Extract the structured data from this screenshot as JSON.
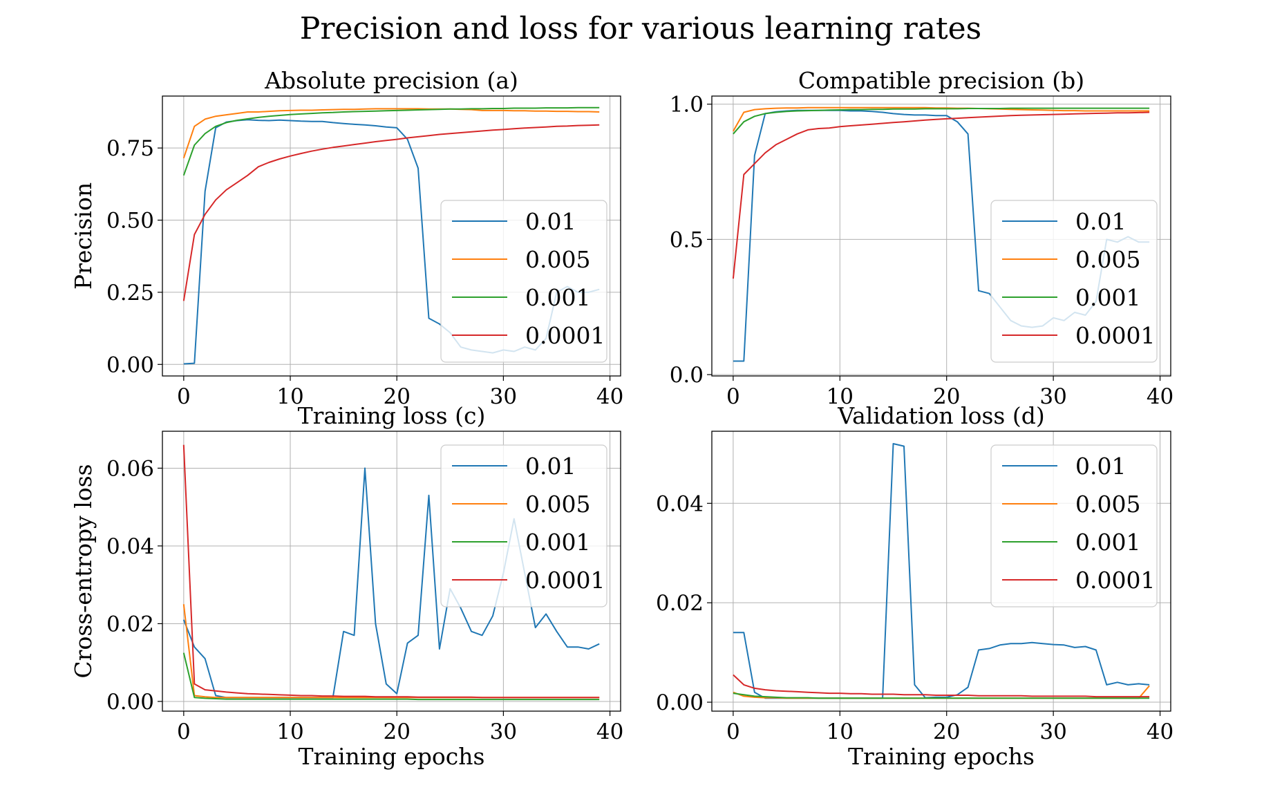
{
  "figure": {
    "title": "Precision and loss for various learning rates",
    "series_colors": {
      "0.01": "#1f77b4",
      "0.005": "#ff7f0e",
      "0.001": "#2ca02c",
      "0.0001": "#d62728"
    }
  },
  "chart_data": [
    {
      "type": "line",
      "title": "Absolute precision (a)",
      "xlabel": "",
      "ylabel": "Precision",
      "xlim": [
        -2,
        41
      ],
      "ylim": [
        -0.04,
        0.93
      ],
      "xticks": [
        0,
        10,
        20,
        30,
        40
      ],
      "xtick_labels": [
        "0",
        "10",
        "20",
        "30",
        "40"
      ],
      "yticks": [
        0,
        0.25,
        0.5,
        0.75
      ],
      "ytick_labels": [
        "0.00",
        "0.25",
        "0.50",
        "0.75"
      ],
      "grid": true,
      "legend": "center-right",
      "x": [
        0,
        1,
        2,
        3,
        4,
        5,
        6,
        7,
        8,
        9,
        10,
        11,
        12,
        13,
        14,
        15,
        16,
        17,
        18,
        19,
        20,
        21,
        22,
        23,
        24,
        25,
        26,
        27,
        28,
        29,
        30,
        31,
        32,
        33,
        34,
        35,
        36,
        37,
        38,
        39
      ],
      "series": [
        {
          "name": "0.01",
          "color": "#1f77b4",
          "values": [
            0.002,
            0.004,
            0.6,
            0.82,
            0.84,
            0.845,
            0.848,
            0.846,
            0.845,
            0.847,
            0.845,
            0.843,
            0.842,
            0.842,
            0.838,
            0.835,
            0.832,
            0.83,
            0.827,
            0.823,
            0.82,
            0.78,
            0.68,
            0.16,
            0.14,
            0.11,
            0.06,
            0.05,
            0.045,
            0.04,
            0.05,
            0.045,
            0.06,
            0.05,
            0.09,
            0.25,
            0.27,
            0.25,
            0.25,
            0.26
          ]
        },
        {
          "name": "0.005",
          "color": "#ff7f0e",
          "values": [
            0.715,
            0.825,
            0.85,
            0.86,
            0.865,
            0.87,
            0.875,
            0.875,
            0.877,
            0.879,
            0.88,
            0.881,
            0.881,
            0.882,
            0.883,
            0.884,
            0.884,
            0.885,
            0.886,
            0.886,
            0.886,
            0.886,
            0.886,
            0.885,
            0.885,
            0.885,
            0.884,
            0.883,
            0.88,
            0.88,
            0.88,
            0.879,
            0.879,
            0.878,
            0.878,
            0.877,
            0.877,
            0.876,
            0.876,
            0.875
          ]
        },
        {
          "name": "0.001",
          "color": "#2ca02c",
          "values": [
            0.655,
            0.76,
            0.8,
            0.825,
            0.838,
            0.846,
            0.851,
            0.856,
            0.86,
            0.863,
            0.866,
            0.868,
            0.87,
            0.872,
            0.873,
            0.875,
            0.876,
            0.877,
            0.878,
            0.879,
            0.88,
            0.881,
            0.882,
            0.883,
            0.884,
            0.885,
            0.885,
            0.886,
            0.886,
            0.887,
            0.887,
            0.888,
            0.888,
            0.888,
            0.889,
            0.889,
            0.889,
            0.89,
            0.89,
            0.89
          ]
        },
        {
          "name": "0.0001",
          "color": "#d62728",
          "values": [
            0.22,
            0.45,
            0.52,
            0.57,
            0.605,
            0.63,
            0.655,
            0.685,
            0.7,
            0.712,
            0.722,
            0.731,
            0.739,
            0.746,
            0.752,
            0.757,
            0.762,
            0.767,
            0.772,
            0.776,
            0.78,
            0.785,
            0.789,
            0.793,
            0.797,
            0.8,
            0.803,
            0.806,
            0.809,
            0.812,
            0.814,
            0.817,
            0.819,
            0.821,
            0.823,
            0.825,
            0.826,
            0.828,
            0.829,
            0.83
          ]
        }
      ]
    },
    {
      "type": "line",
      "title": "Compatible precision (b)",
      "xlabel": "",
      "ylabel": "",
      "xlim": [
        -2,
        41
      ],
      "ylim": [
        -0.005,
        1.03
      ],
      "xticks": [
        0,
        10,
        20,
        30,
        40
      ],
      "xtick_labels": [
        "0",
        "10",
        "20",
        "30",
        "40"
      ],
      "yticks": [
        0,
        0.5,
        1.0
      ],
      "ytick_labels": [
        "0.0",
        "0.5",
        "1.0"
      ],
      "grid": true,
      "legend": "center-right",
      "x": [
        0,
        1,
        2,
        3,
        4,
        5,
        6,
        7,
        8,
        9,
        10,
        11,
        12,
        13,
        14,
        15,
        16,
        17,
        18,
        19,
        20,
        21,
        22,
        23,
        24,
        25,
        26,
        27,
        28,
        29,
        30,
        31,
        32,
        33,
        34,
        35,
        36,
        37,
        38,
        39
      ],
      "series": [
        {
          "name": "0.01",
          "color": "#1f77b4",
          "values": [
            0.05,
            0.05,
            0.81,
            0.965,
            0.972,
            0.975,
            0.977,
            0.977,
            0.977,
            0.977,
            0.977,
            0.975,
            0.975,
            0.973,
            0.97,
            0.965,
            0.962,
            0.96,
            0.96,
            0.958,
            0.958,
            0.935,
            0.89,
            0.31,
            0.3,
            0.25,
            0.2,
            0.18,
            0.175,
            0.18,
            0.21,
            0.2,
            0.23,
            0.22,
            0.27,
            0.5,
            0.49,
            0.51,
            0.49,
            0.49
          ]
        },
        {
          "name": "0.005",
          "color": "#ff7f0e",
          "values": [
            0.9,
            0.97,
            0.98,
            0.983,
            0.985,
            0.986,
            0.986,
            0.987,
            0.987,
            0.987,
            0.987,
            0.987,
            0.987,
            0.987,
            0.987,
            0.987,
            0.987,
            0.987,
            0.987,
            0.986,
            0.986,
            0.985,
            0.985,
            0.984,
            0.983,
            0.982,
            0.981,
            0.98,
            0.979,
            0.978,
            0.977,
            0.976,
            0.976,
            0.975,
            0.975,
            0.975,
            0.975,
            0.975,
            0.975,
            0.975
          ]
        },
        {
          "name": "0.001",
          "color": "#2ca02c",
          "values": [
            0.89,
            0.935,
            0.955,
            0.965,
            0.97,
            0.973,
            0.975,
            0.976,
            0.977,
            0.978,
            0.979,
            0.98,
            0.98,
            0.981,
            0.981,
            0.982,
            0.982,
            0.982,
            0.983,
            0.983,
            0.983,
            0.983,
            0.984,
            0.984,
            0.984,
            0.984,
            0.985,
            0.985,
            0.985,
            0.985,
            0.985,
            0.985,
            0.985,
            0.985,
            0.985,
            0.985,
            0.985,
            0.985,
            0.985,
            0.985
          ]
        },
        {
          "name": "0.0001",
          "color": "#d62728",
          "values": [
            0.355,
            0.74,
            0.78,
            0.82,
            0.85,
            0.87,
            0.89,
            0.905,
            0.91,
            0.912,
            0.917,
            0.92,
            0.923,
            0.926,
            0.929,
            0.932,
            0.935,
            0.938,
            0.941,
            0.944,
            0.946,
            0.948,
            0.95,
            0.952,
            0.954,
            0.956,
            0.958,
            0.959,
            0.96,
            0.961,
            0.962,
            0.963,
            0.964,
            0.965,
            0.966,
            0.967,
            0.968,
            0.968,
            0.969,
            0.97
          ]
        }
      ]
    },
    {
      "type": "line",
      "title": "Training loss (c)",
      "xlabel": "Training epochs",
      "ylabel": "Cross-entropy loss",
      "xlim": [
        -2,
        41
      ],
      "ylim": [
        -0.0025,
        0.0695
      ],
      "xticks": [
        0,
        10,
        20,
        30,
        40
      ],
      "xtick_labels": [
        "0",
        "10",
        "20",
        "30",
        "40"
      ],
      "yticks": [
        0,
        0.02,
        0.04,
        0.06
      ],
      "ytick_labels": [
        "0.00",
        "0.02",
        "0.04",
        "0.06"
      ],
      "grid": true,
      "legend": "upper-right",
      "x": [
        0,
        1,
        2,
        3,
        4,
        5,
        6,
        7,
        8,
        9,
        10,
        11,
        12,
        13,
        14,
        15,
        16,
        17,
        18,
        19,
        20,
        21,
        22,
        23,
        24,
        25,
        26,
        27,
        28,
        29,
        30,
        31,
        32,
        33,
        34,
        35,
        36,
        37,
        38,
        39
      ],
      "series": [
        {
          "name": "0.01",
          "color": "#1f77b4",
          "values": [
            0.021,
            0.014,
            0.011,
            0.0015,
            0.001,
            0.001,
            0.001,
            0.001,
            0.001,
            0.001,
            0.001,
            0.001,
            0.001,
            0.001,
            0.001,
            0.018,
            0.017,
            0.06,
            0.02,
            0.0045,
            0.002,
            0.015,
            0.017,
            0.053,
            0.0135,
            0.029,
            0.024,
            0.018,
            0.017,
            0.022,
            0.033,
            0.047,
            0.033,
            0.019,
            0.0225,
            0.018,
            0.014,
            0.014,
            0.0135,
            0.0148
          ]
        },
        {
          "name": "0.005",
          "color": "#ff7f0e",
          "values": [
            0.025,
            0.0015,
            0.0012,
            0.001,
            0.001,
            0.001,
            0.001,
            0.001,
            0.001,
            0.001,
            0.001,
            0.001,
            0.001,
            0.001,
            0.001,
            0.001,
            0.001,
            0.001,
            0.001,
            0.001,
            0.001,
            0.001,
            0.001,
            0.001,
            0.001,
            0.001,
            0.001,
            0.001,
            0.001,
            0.001,
            0.001,
            0.001,
            0.001,
            0.001,
            0.001,
            0.001,
            0.001,
            0.001,
            0.001,
            0.001
          ]
        },
        {
          "name": "0.001",
          "color": "#2ca02c",
          "values": [
            0.0125,
            0.001,
            0.0008,
            0.0007,
            0.0006,
            0.0006,
            0.0006,
            0.0006,
            0.0006,
            0.0006,
            0.0006,
            0.0006,
            0.0006,
            0.0006,
            0.0006,
            0.0006,
            0.0006,
            0.0006,
            0.0006,
            0.0006,
            0.0006,
            0.0006,
            0.0005,
            0.0005,
            0.0005,
            0.0005,
            0.0005,
            0.0005,
            0.0005,
            0.0005,
            0.0005,
            0.0005,
            0.0005,
            0.0005,
            0.0005,
            0.0005,
            0.0005,
            0.0005,
            0.0005,
            0.0005
          ]
        },
        {
          "name": "0.0001",
          "color": "#d62728",
          "values": [
            0.066,
            0.0045,
            0.003,
            0.0027,
            0.0024,
            0.0022,
            0.002,
            0.0019,
            0.0018,
            0.0017,
            0.0016,
            0.0015,
            0.0015,
            0.0014,
            0.0014,
            0.0013,
            0.0013,
            0.0013,
            0.0012,
            0.0012,
            0.0012,
            0.0012,
            0.0011,
            0.0011,
            0.0011,
            0.0011,
            0.0011,
            0.0011,
            0.001,
            0.001,
            0.001,
            0.001,
            0.001,
            0.001,
            0.001,
            0.001,
            0.001,
            0.001,
            0.001,
            0.001
          ]
        }
      ]
    },
    {
      "type": "line",
      "title": "Validation loss (d)",
      "xlabel": "Training epochs",
      "ylabel": "",
      "xlim": [
        -2,
        41
      ],
      "ylim": [
        -0.0018,
        0.0545
      ],
      "xticks": [
        0,
        10,
        20,
        30,
        40
      ],
      "xtick_labels": [
        "0",
        "10",
        "20",
        "30",
        "40"
      ],
      "yticks": [
        0,
        0.02,
        0.04
      ],
      "ytick_labels": [
        "0.00",
        "0.02",
        "0.04"
      ],
      "grid": true,
      "legend": "upper-right",
      "x": [
        0,
        1,
        2,
        3,
        4,
        5,
        6,
        7,
        8,
        9,
        10,
        11,
        12,
        13,
        14,
        15,
        16,
        17,
        18,
        19,
        20,
        21,
        22,
        23,
        24,
        25,
        26,
        27,
        28,
        29,
        30,
        31,
        32,
        33,
        34,
        35,
        36,
        37,
        38,
        39
      ],
      "series": [
        {
          "name": "0.01",
          "color": "#1f77b4",
          "values": [
            0.014,
            0.014,
            0.002,
            0.0008,
            0.0008,
            0.0008,
            0.0008,
            0.0008,
            0.0008,
            0.0008,
            0.0008,
            0.0008,
            0.0008,
            0.0008,
            0.0008,
            0.052,
            0.0515,
            0.0035,
            0.0009,
            0.001,
            0.001,
            0.0015,
            0.003,
            0.0105,
            0.0108,
            0.0115,
            0.0118,
            0.0118,
            0.012,
            0.0118,
            0.0116,
            0.0115,
            0.011,
            0.0112,
            0.0105,
            0.0035,
            0.004,
            0.0035,
            0.0037,
            0.0035
          ]
        },
        {
          "name": "0.005",
          "color": "#ff7f0e",
          "values": [
            0.002,
            0.0012,
            0.001,
            0.0009,
            0.0009,
            0.0008,
            0.0008,
            0.0008,
            0.0008,
            0.0008,
            0.0008,
            0.0008,
            0.0008,
            0.0008,
            0.0008,
            0.0008,
            0.0008,
            0.0008,
            0.0008,
            0.0008,
            0.0008,
            0.0008,
            0.0008,
            0.0008,
            0.0008,
            0.0008,
            0.0008,
            0.0008,
            0.0008,
            0.0008,
            0.0008,
            0.0008,
            0.0008,
            0.0008,
            0.0008,
            0.0008,
            0.0008,
            0.0008,
            0.0008,
            0.0033
          ]
        },
        {
          "name": "0.001",
          "color": "#2ca02c",
          "values": [
            0.0018,
            0.0015,
            0.0012,
            0.0011,
            0.001,
            0.0009,
            0.0009,
            0.0009,
            0.0008,
            0.0008,
            0.0008,
            0.0008,
            0.0008,
            0.0008,
            0.0008,
            0.0008,
            0.0008,
            0.0008,
            0.0008,
            0.0008,
            0.0008,
            0.0008,
            0.0008,
            0.0008,
            0.0008,
            0.0008,
            0.0008,
            0.0008,
            0.0008,
            0.0008,
            0.0008,
            0.0008,
            0.0008,
            0.0008,
            0.0008,
            0.0008,
            0.0008,
            0.0008,
            0.0008,
            0.0008
          ]
        },
        {
          "name": "0.0001",
          "color": "#d62728",
          "values": [
            0.0055,
            0.0035,
            0.0028,
            0.0025,
            0.0023,
            0.0022,
            0.0021,
            0.002,
            0.0019,
            0.0018,
            0.0018,
            0.0017,
            0.0017,
            0.0016,
            0.0016,
            0.0016,
            0.0015,
            0.0015,
            0.0015,
            0.0014,
            0.0014,
            0.0014,
            0.0014,
            0.0013,
            0.0013,
            0.0013,
            0.0013,
            0.0013,
            0.0012,
            0.0012,
            0.0012,
            0.0012,
            0.0012,
            0.0012,
            0.0011,
            0.0011,
            0.0011,
            0.0011,
            0.0011,
            0.0011
          ]
        }
      ]
    }
  ]
}
